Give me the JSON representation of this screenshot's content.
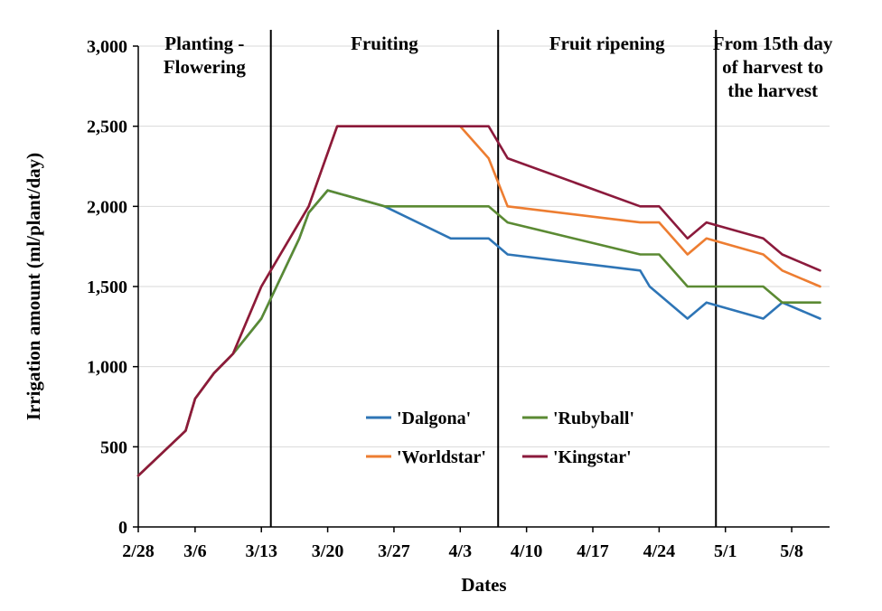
{
  "chart_data": {
    "type": "line",
    "xlabel": "Dates",
    "ylabel": "Irrigation amount (ml/plant/day)",
    "ylim": [
      0,
      3000
    ],
    "yticks": [
      {
        "value": 0,
        "label": "0"
      },
      {
        "value": 500,
        "label": "500"
      },
      {
        "value": 1000,
        "label": "1,000"
      },
      {
        "value": 1500,
        "label": "1,500"
      },
      {
        "value": 2000,
        "label": "2,000"
      },
      {
        "value": 2500,
        "label": "2,500"
      },
      {
        "value": 3000,
        "label": "3,000"
      }
    ],
    "xlim": [
      "2/28",
      "5/12"
    ],
    "xticks": [
      "2/28",
      "3/6",
      "3/13",
      "3/20",
      "3/27",
      "4/3",
      "4/10",
      "4/17",
      "4/24",
      "5/1",
      "5/8"
    ],
    "grid": "horizontal",
    "legend_position": "center-right",
    "phases": [
      {
        "label_lines": [
          "Planting -",
          "Flowering"
        ],
        "start": "2/28",
        "end": "3/14"
      },
      {
        "label_lines": [
          "Fruiting"
        ],
        "start": "3/14",
        "end": "4/7"
      },
      {
        "label_lines": [
          "Fruit ripening"
        ],
        "start": "4/7",
        "end": "4/30"
      },
      {
        "label_lines": [
          "From 15th day",
          "of harvest to",
          "the harvest"
        ],
        "start": "4/30",
        "end": "5/12"
      }
    ],
    "phase_dividers": [
      "3/14",
      "4/7",
      "4/30"
    ],
    "series": [
      {
        "name": "'Dalgona'",
        "color": "#2e75b6",
        "points": [
          {
            "x": "2/28",
            "y": 320
          },
          {
            "x": "3/5",
            "y": 600
          },
          {
            "x": "3/6",
            "y": 800
          },
          {
            "x": "3/8",
            "y": 960
          },
          {
            "x": "3/10",
            "y": 1080
          },
          {
            "x": "3/13",
            "y": 1300
          },
          {
            "x": "3/17",
            "y": 1800
          },
          {
            "x": "3/18",
            "y": 1960
          },
          {
            "x": "3/20",
            "y": 2100
          },
          {
            "x": "3/26",
            "y": 2000
          },
          {
            "x": "4/2",
            "y": 1800
          },
          {
            "x": "4/6",
            "y": 1800
          },
          {
            "x": "4/8",
            "y": 1700
          },
          {
            "x": "4/22",
            "y": 1600
          },
          {
            "x": "4/23",
            "y": 1500
          },
          {
            "x": "4/27",
            "y": 1300
          },
          {
            "x": "4/29",
            "y": 1400
          },
          {
            "x": "5/5",
            "y": 1300
          },
          {
            "x": "5/7",
            "y": 1400
          },
          {
            "x": "5/11",
            "y": 1300
          }
        ]
      },
      {
        "name": "'Rubyball'",
        "color": "#5b8a33",
        "points": [
          {
            "x": "2/28",
            "y": 320
          },
          {
            "x": "3/5",
            "y": 600
          },
          {
            "x": "3/6",
            "y": 800
          },
          {
            "x": "3/8",
            "y": 960
          },
          {
            "x": "3/10",
            "y": 1080
          },
          {
            "x": "3/13",
            "y": 1300
          },
          {
            "x": "3/17",
            "y": 1800
          },
          {
            "x": "3/18",
            "y": 1960
          },
          {
            "x": "3/20",
            "y": 2100
          },
          {
            "x": "3/26",
            "y": 2000
          },
          {
            "x": "4/6",
            "y": 2000
          },
          {
            "x": "4/8",
            "y": 1900
          },
          {
            "x": "4/22",
            "y": 1700
          },
          {
            "x": "4/24",
            "y": 1700
          },
          {
            "x": "4/27",
            "y": 1500
          },
          {
            "x": "5/5",
            "y": 1500
          },
          {
            "x": "5/7",
            "y": 1400
          },
          {
            "x": "5/11",
            "y": 1400
          }
        ]
      },
      {
        "name": "'Worldstar'",
        "color": "#ed7d31",
        "points": [
          {
            "x": "2/28",
            "y": 320
          },
          {
            "x": "3/5",
            "y": 600
          },
          {
            "x": "3/6",
            "y": 800
          },
          {
            "x": "3/8",
            "y": 960
          },
          {
            "x": "3/10",
            "y": 1080
          },
          {
            "x": "3/13",
            "y": 1500
          },
          {
            "x": "3/18",
            "y": 2000
          },
          {
            "x": "3/21",
            "y": 2500
          },
          {
            "x": "4/3",
            "y": 2500
          },
          {
            "x": "4/6",
            "y": 2300
          },
          {
            "x": "4/8",
            "y": 2000
          },
          {
            "x": "4/22",
            "y": 1900
          },
          {
            "x": "4/24",
            "y": 1900
          },
          {
            "x": "4/27",
            "y": 1700
          },
          {
            "x": "4/29",
            "y": 1800
          },
          {
            "x": "5/5",
            "y": 1700
          },
          {
            "x": "5/7",
            "y": 1600
          },
          {
            "x": "5/11",
            "y": 1500
          }
        ]
      },
      {
        "name": "'Kingstar'",
        "color": "#8b1a3c",
        "points": [
          {
            "x": "2/28",
            "y": 320
          },
          {
            "x": "3/5",
            "y": 600
          },
          {
            "x": "3/6",
            "y": 800
          },
          {
            "x": "3/8",
            "y": 960
          },
          {
            "x": "3/10",
            "y": 1080
          },
          {
            "x": "3/13",
            "y": 1500
          },
          {
            "x": "3/18",
            "y": 2000
          },
          {
            "x": "3/21",
            "y": 2500
          },
          {
            "x": "4/6",
            "y": 2500
          },
          {
            "x": "4/8",
            "y": 2300
          },
          {
            "x": "4/22",
            "y": 2000
          },
          {
            "x": "4/24",
            "y": 2000
          },
          {
            "x": "4/27",
            "y": 1800
          },
          {
            "x": "4/29",
            "y": 1900
          },
          {
            "x": "5/5",
            "y": 1800
          },
          {
            "x": "5/7",
            "y": 1700
          },
          {
            "x": "5/11",
            "y": 1600
          }
        ]
      }
    ]
  }
}
